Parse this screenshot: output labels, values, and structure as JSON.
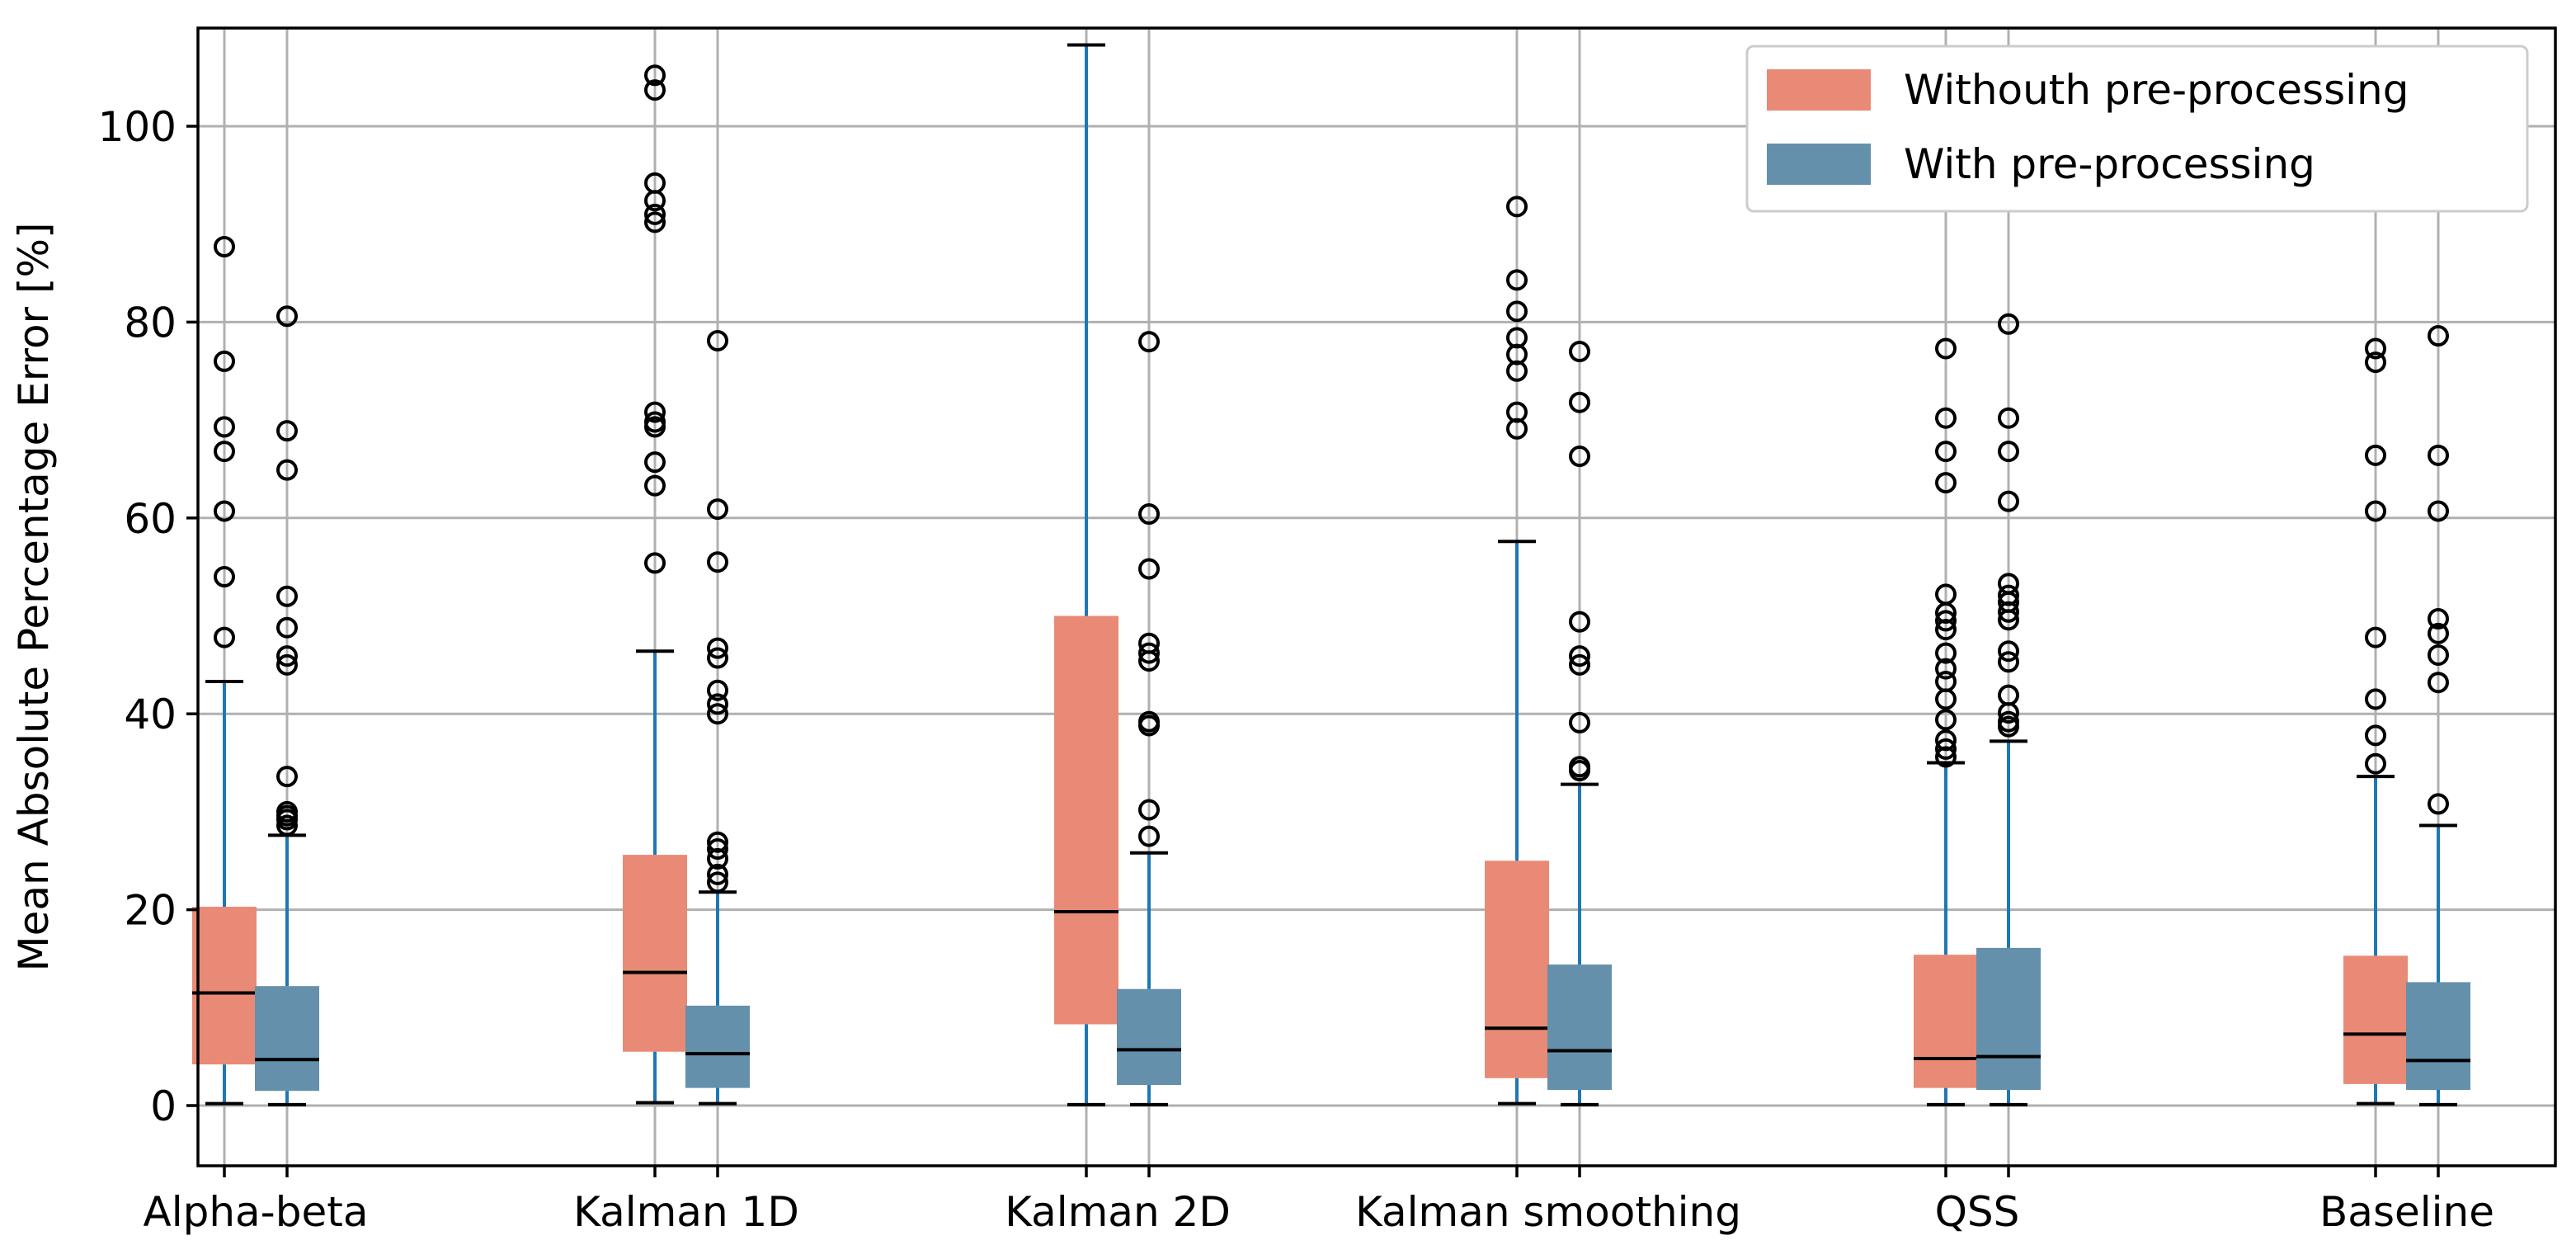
{
  "chart_data": {
    "type": "boxplot",
    "title": "",
    "xlabel": "",
    "ylabel": "Mean Absolute Percentage Error [%]",
    "ylim": [
      -6.5,
      110
    ],
    "yticks": [
      0,
      20,
      40,
      60,
      80,
      100
    ],
    "grid": true,
    "legend_position": "top-right",
    "categories": [
      "Alpha-beta",
      "Kalman 1D",
      "Kalman 2D",
      "Kalman smoothing",
      "QSS",
      "Baseline"
    ],
    "series": [
      {
        "name": "Withouth pre-processing",
        "color": "#e88a75",
        "boxes": [
          {
            "min": 0.2,
            "q1": 4.2,
            "median": 11.5,
            "q3": 20.3,
            "max": 43.3,
            "fliers": [
              47.8,
              54.0,
              60.7,
              66.8,
              69.3,
              76.0,
              87.7
            ]
          },
          {
            "min": 0.3,
            "q1": 5.5,
            "median": 13.6,
            "q3": 25.6,
            "max": 46.4,
            "fliers": [
              55.4,
              63.3,
              65.7,
              69.3,
              69.8,
              70.8,
              90.2,
              91.0,
              92.4,
              94.2,
              103.7,
              105.2
            ]
          },
          {
            "min": 0.1,
            "q1": 8.3,
            "median": 19.8,
            "q3": 50.0,
            "max": 108.3,
            "fliers": []
          },
          {
            "min": 0.2,
            "q1": 2.8,
            "median": 7.9,
            "q3": 25.0,
            "max": 57.6,
            "fliers": [
              69.1,
              70.8,
              75.0,
              76.7,
              78.4,
              81.1,
              84.3,
              91.8
            ]
          },
          {
            "min": 0.1,
            "q1": 1.8,
            "median": 4.8,
            "q3": 15.4,
            "max": 35.0,
            "fliers": [
              35.6,
              36.4,
              37.3,
              39.4,
              41.5,
              43.3,
              44.6,
              46.2,
              48.6,
              49.5,
              50.3,
              52.2,
              63.6,
              66.8,
              70.2,
              77.3
            ]
          },
          {
            "min": 0.2,
            "q1": 2.2,
            "median": 7.3,
            "q3": 15.3,
            "max": 33.6,
            "fliers": [
              34.9,
              37.8,
              41.5,
              47.8,
              60.7,
              66.4,
              75.9,
              77.3
            ]
          }
        ]
      },
      {
        "name": "With pre-processing",
        "color": "#6490ab",
        "boxes": [
          {
            "min": 0.1,
            "q1": 1.5,
            "median": 4.7,
            "q3": 12.2,
            "max": 27.6,
            "fliers": [
              28.6,
              29.2,
              29.6,
              30.0,
              33.6,
              45.0,
              45.9,
              48.8,
              52.0,
              64.9,
              68.9,
              80.6
            ]
          },
          {
            "min": 0.2,
            "q1": 1.8,
            "median": 5.3,
            "q3": 10.2,
            "max": 21.8,
            "fliers": [
              22.8,
              23.6,
              25.2,
              26.2,
              26.9,
              40.0,
              41.0,
              42.4,
              45.7,
              46.7,
              55.5,
              60.9,
              78.1
            ]
          },
          {
            "min": 0.1,
            "q1": 2.1,
            "median": 5.7,
            "q3": 11.9,
            "max": 25.8,
            "fliers": [
              27.5,
              30.2,
              38.8,
              39.2,
              45.4,
              46.2,
              47.2,
              54.8,
              60.4,
              78.0
            ]
          },
          {
            "min": 0.1,
            "q1": 1.6,
            "median": 5.6,
            "q3": 14.4,
            "max": 32.8,
            "fliers": [
              34.2,
              34.6,
              39.1,
              45.0,
              45.9,
              49.4,
              66.3,
              71.8,
              77.0
            ]
          },
          {
            "min": 0.1,
            "q1": 1.6,
            "median": 5.0,
            "q3": 16.1,
            "max": 37.2,
            "fliers": [
              38.7,
              39.2,
              40.1,
              41.9,
              45.3,
              46.4,
              49.6,
              50.4,
              51.4,
              52.1,
              53.3,
              61.7,
              66.8,
              70.2,
              79.8
            ]
          },
          {
            "min": 0.1,
            "q1": 1.6,
            "median": 4.6,
            "q3": 12.6,
            "max": 28.6,
            "fliers": [
              30.8,
              43.2,
              46.0,
              48.2,
              49.7,
              60.7,
              66.4,
              78.6
            ]
          }
        ]
      }
    ]
  }
}
